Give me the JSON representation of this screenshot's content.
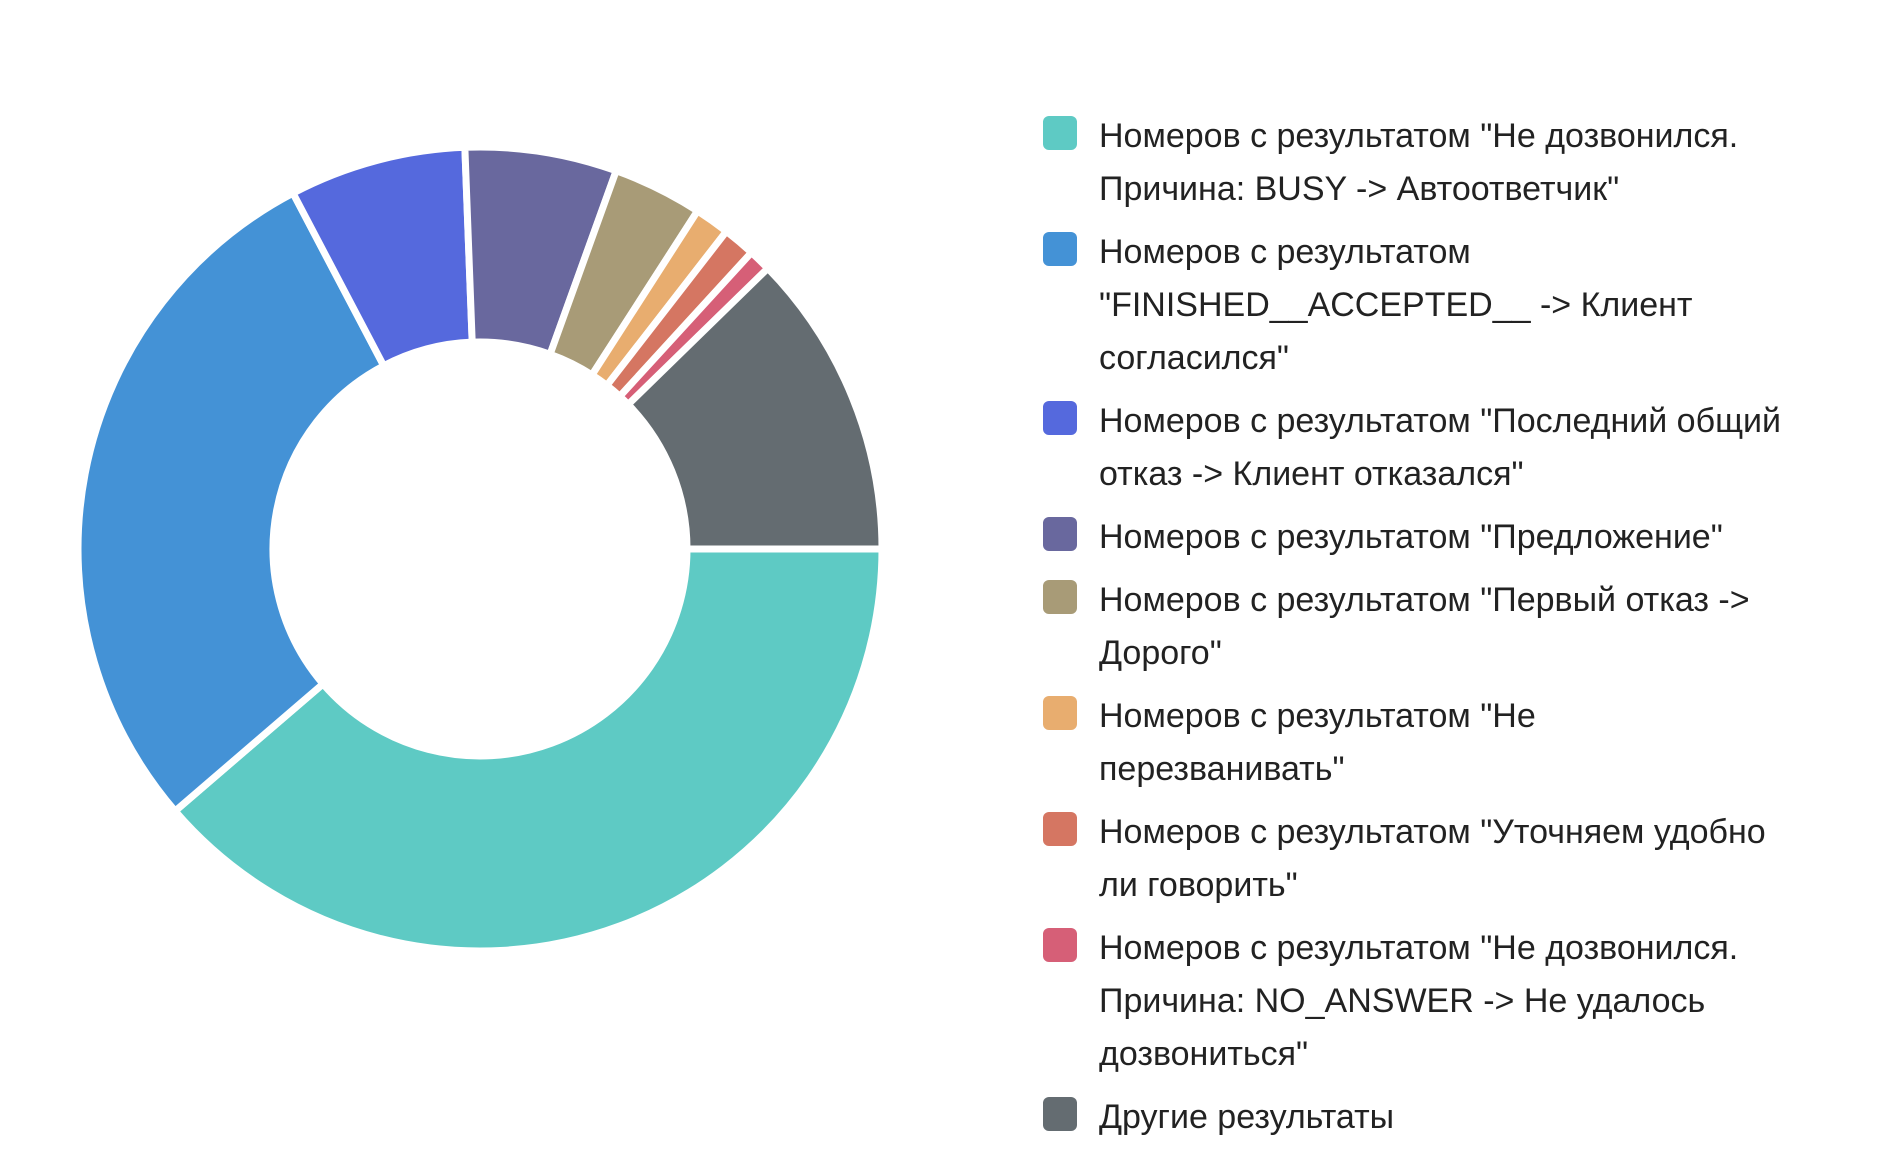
{
  "chart_data": {
    "type": "pie",
    "variant": "donut",
    "legend_position": "right",
    "slices": [
      {
        "label": "Номеров с результатом \"Не дозвонился.\nПричина: BUSY -> Автоответчик\"",
        "value": 38.7,
        "color": "#5ecac4"
      },
      {
        "label": "Номеров с результатом\n\"FINISHED__ACCEPTED__ -> Клиент\nсогласился\"",
        "value": 28.6,
        "color": "#4492d6"
      },
      {
        "label": "Номеров с результатом \"Последний общий\nотказ -> Клиент отказался\"",
        "value": 7.1,
        "color": "#5569dd"
      },
      {
        "label": "Номеров с результатом \"Предложение\"",
        "value": 6.1,
        "color": "#69689e"
      },
      {
        "label": "Номеров с результатом \"Первый отказ ->\nДорого\"",
        "value": 3.6,
        "color": "#a89b77"
      },
      {
        "label": "Номеров с результатом \"Не\nперезванивать\"",
        "value": 1.4,
        "color": "#e8ad6f"
      },
      {
        "label": "Номеров с результатом \"Уточняем удобно\nли говорить\"",
        "value": 1.3,
        "color": "#d57662"
      },
      {
        "label": "Номеров с результатом \"Не дозвонился.\nПричина: NO_ANSWER -> Не удалось\nдозвониться\"",
        "value": 0.9,
        "color": "#d65f77"
      },
      {
        "label": "Другие результаты",
        "value": 12.3,
        "color": "#646c71"
      }
    ]
  }
}
